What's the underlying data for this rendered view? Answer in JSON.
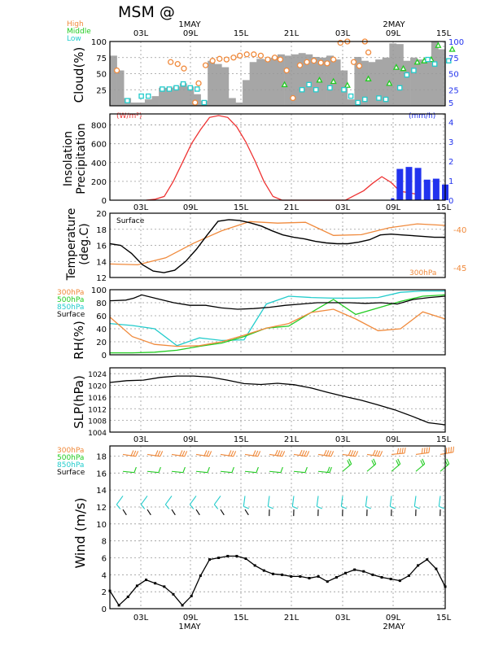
{
  "chart_data": {
    "type": "line",
    "title": "MSM @",
    "x_ticks": [
      "03L",
      "09L",
      "15L",
      "21L",
      "03L",
      "09L",
      "15L"
    ],
    "date_labels": [
      "1MAY",
      "2MAY"
    ],
    "colors": {
      "high": "#f08a3c",
      "middle": "#22cc22",
      "low": "#22cccc",
      "surface": "#000000",
      "insolation": "#ee3333",
      "precipitation": "#2233ee",
      "p300": "#f08a3c",
      "p500": "#22cc22",
      "p850": "#22cccc"
    },
    "cloud": {
      "ylabel": "Cloud(%)",
      "ylim": [
        0,
        100
      ],
      "yticks_left": [
        "25",
        "50",
        "75",
        "100"
      ],
      "yticks_right": [
        "5",
        "25",
        "50",
        "75",
        "100"
      ],
      "legend": [
        "High",
        "Middle",
        "Low"
      ],
      "total": [
        78,
        55,
        12,
        5,
        5,
        10,
        15,
        28,
        28,
        30,
        35,
        30,
        18,
        8,
        70,
        65,
        60,
        12,
        5,
        40,
        68,
        73,
        72,
        75,
        80,
        78,
        80,
        82,
        80,
        76,
        75,
        78,
        72,
        55,
        10,
        76,
        70,
        68,
        72,
        75,
        97,
        96,
        70,
        75,
        72,
        68,
        100,
        88
      ],
      "high": [
        null,
        55,
        null,
        null,
        null,
        null,
        null,
        null,
        null,
        null,
        null,
        null,
        null,
        null,
        68,
        65,
        60,
        12,
        null,
        37,
        65,
        73,
        null,
        76,
        78,
        80,
        82,
        null,
        76,
        75,
        78,
        72,
        55,
        null,
        73,
        null,
        68,
        65,
        null,
        72,
        null,
        null,
        null,
        null,
        null,
        null,
        null,
        null
      ],
      "middle": [
        null,
        null,
        null,
        null,
        null,
        null,
        null,
        null,
        null,
        null,
        null,
        null,
        null,
        null,
        null,
        null,
        null,
        null,
        null,
        null,
        null,
        null,
        null,
        null,
        null,
        null,
        null,
        null,
        null,
        null,
        null,
        null,
        null,
        null,
        null,
        null,
        null,
        null,
        null,
        null,
        null,
        null,
        null,
        null,
        null,
        null,
        null,
        null
      ],
      "middle_points": [
        [
          25,
          33
        ],
        [
          30,
          40
        ],
        [
          32,
          38
        ],
        [
          34,
          32
        ],
        [
          37,
          42
        ],
        [
          40,
          35
        ],
        [
          41,
          60
        ],
        [
          42,
          58
        ],
        [
          44,
          68
        ],
        [
          45,
          70
        ],
        [
          46,
          72
        ],
        [
          47,
          94
        ],
        [
          49,
          88
        ]
      ],
      "low_points": [
        [
          2.5,
          8
        ],
        [
          4.5,
          15
        ],
        [
          5.5,
          15
        ],
        [
          7.5,
          26
        ],
        [
          8.5,
          26
        ],
        [
          9.5,
          28
        ],
        [
          10.5,
          34
        ],
        [
          11.5,
          28
        ],
        [
          12.5,
          26
        ],
        [
          13.5,
          5
        ],
        [
          27.5,
          25
        ],
        [
          28.5,
          33
        ],
        [
          29.5,
          25
        ],
        [
          31.5,
          28
        ],
        [
          33.5,
          25
        ],
        [
          34.5,
          15
        ],
        [
          35.5,
          5
        ],
        [
          36.5,
          10
        ],
        [
          38.5,
          12
        ],
        [
          39.5,
          10
        ],
        [
          41.5,
          28
        ],
        [
          42.5,
          48
        ],
        [
          43.5,
          55
        ],
        [
          45.5,
          72
        ],
        [
          46.5,
          65
        ],
        [
          48.5,
          70
        ]
      ],
      "high_points": [
        [
          1,
          55
        ],
        [
          8.7,
          68
        ],
        [
          9.7,
          65
        ],
        [
          10.6,
          58
        ],
        [
          12.2,
          5
        ],
        [
          12.7,
          35
        ],
        [
          13.7,
          63
        ],
        [
          14.7,
          70
        ],
        [
          15.7,
          73
        ],
        [
          16.7,
          72
        ],
        [
          17.7,
          75
        ],
        [
          18.6,
          78
        ],
        [
          19.6,
          80
        ],
        [
          20.6,
          80
        ],
        [
          21.6,
          78
        ],
        [
          22.6,
          72
        ],
        [
          23.6,
          75
        ],
        [
          24.4,
          72
        ],
        [
          25.3,
          55
        ],
        [
          26.2,
          12
        ],
        [
          27.2,
          63
        ],
        [
          28.2,
          68
        ],
        [
          29.2,
          70
        ],
        [
          30.2,
          67
        ],
        [
          31.1,
          66
        ],
        [
          32,
          72
        ],
        [
          33,
          98
        ],
        [
          34,
          100
        ],
        [
          34.9,
          68
        ],
        [
          35.7,
          62
        ],
        [
          36.5,
          100
        ],
        [
          37,
          83
        ]
      ]
    },
    "insolation": {
      "ylabel": "Insolation Precipitation",
      "left_unit": "(W/m²)",
      "right_unit": "(mm/h)",
      "yticks_left": [
        "0",
        "200",
        "400",
        "600",
        "800"
      ],
      "yticks_right": [
        "0",
        "1",
        "2",
        "3",
        "4"
      ],
      "insolation_points": [
        [
          4,
          0
        ],
        [
          5,
          10
        ],
        [
          6,
          40
        ],
        [
          7,
          200
        ],
        [
          8,
          400
        ],
        [
          9,
          600
        ],
        [
          10,
          750
        ],
        [
          11,
          880
        ],
        [
          12,
          900
        ],
        [
          13,
          880
        ],
        [
          14,
          780
        ],
        [
          15,
          620
        ],
        [
          16,
          420
        ],
        [
          17,
          200
        ],
        [
          18,
          40
        ],
        [
          19,
          0
        ],
        [
          26,
          0
        ],
        [
          27,
          50
        ],
        [
          28,
          100
        ],
        [
          29,
          180
        ],
        [
          30,
          250
        ],
        [
          31,
          190
        ],
        [
          32,
          95
        ],
        [
          33,
          80
        ],
        [
          34,
          60
        ]
      ],
      "precip_bars": [
        [
          31.2,
          0.1
        ],
        [
          32,
          1.6
        ],
        [
          33,
          1.7
        ],
        [
          34,
          1.65
        ],
        [
          35,
          1.05
        ],
        [
          36,
          1.1
        ],
        [
          37,
          0.8
        ]
      ]
    },
    "temperature": {
      "ylabel": "Temperature (deg.C)",
      "left_ticks": [
        "12",
        "14",
        "16",
        "18",
        "20"
      ],
      "right_ticks": [
        "-40",
        "-45"
      ],
      "label_surface": "Surface",
      "label_upper": "300hPa",
      "surface_points": [
        [
          0,
          16.2
        ],
        [
          1,
          16
        ],
        [
          2,
          15
        ],
        [
          3,
          13.6
        ],
        [
          4,
          12.8
        ],
        [
          5,
          12.6
        ],
        [
          6,
          12.9
        ],
        [
          7,
          14
        ],
        [
          8,
          15.5
        ],
        [
          9,
          17.3
        ],
        [
          10,
          19
        ],
        [
          11,
          19.2
        ],
        [
          12,
          19.1
        ],
        [
          13,
          18.8
        ],
        [
          14,
          18.4
        ],
        [
          15,
          17.8
        ],
        [
          16,
          17.3
        ],
        [
          17,
          17
        ],
        [
          18,
          16.8
        ],
        [
          19,
          16.5
        ],
        [
          20,
          16.3
        ],
        [
          21,
          16.2
        ],
        [
          22,
          16.2
        ],
        [
          23,
          16.4
        ],
        [
          24,
          16.7
        ],
        [
          25,
          17.3
        ],
        [
          26,
          17.4
        ],
        [
          27,
          17.3
        ],
        [
          28,
          17.2
        ],
        [
          29,
          17.1
        ],
        [
          30,
          17
        ],
        [
          31,
          17
        ]
      ],
      "upper_points": [
        [
          0,
          -44.5
        ],
        [
          3,
          -44.6
        ],
        [
          6,
          -43.7
        ],
        [
          9,
          -41.8
        ],
        [
          12,
          -40.2
        ],
        [
          15,
          -39
        ],
        [
          18,
          -39.2
        ],
        [
          21,
          -39.1
        ],
        [
          24,
          -40.8
        ],
        [
          27,
          -40.7
        ],
        [
          30,
          -39.8
        ],
        [
          33,
          -39.3
        ],
        [
          36,
          -39.5
        ]
      ]
    },
    "rh": {
      "ylabel": "RH(%)",
      "ylim": [
        0,
        100
      ],
      "yticks": [
        "0",
        "20",
        "40",
        "60",
        "80",
        "100"
      ],
      "legend": [
        "300hPa",
        "500hPa",
        "850hPa",
        "Surface"
      ],
      "surface": [
        [
          0,
          83
        ],
        [
          2,
          84
        ],
        [
          3,
          87
        ],
        [
          4,
          92
        ],
        [
          6,
          86
        ],
        [
          8,
          80
        ],
        [
          10,
          76
        ],
        [
          12,
          76
        ],
        [
          14,
          72
        ],
        [
          16,
          70
        ],
        [
          18,
          71
        ],
        [
          20,
          73
        ],
        [
          22,
          76
        ],
        [
          24,
          78
        ],
        [
          26,
          80
        ],
        [
          28,
          80
        ],
        [
          30,
          80
        ],
        [
          32,
          79
        ],
        [
          34,
          80
        ],
        [
          36,
          78
        ],
        [
          38,
          85
        ],
        [
          40,
          88
        ],
        [
          42,
          90
        ]
      ],
      "p300": [
        [
          0,
          58
        ],
        [
          3,
          28
        ],
        [
          6,
          16
        ],
        [
          9,
          13
        ],
        [
          12,
          14
        ],
        [
          15,
          20
        ],
        [
          18,
          30
        ],
        [
          21,
          41
        ],
        [
          24,
          48
        ],
        [
          27,
          65
        ],
        [
          30,
          70
        ],
        [
          33,
          55
        ],
        [
          36,
          37
        ],
        [
          39,
          40
        ],
        [
          42,
          66
        ],
        [
          45,
          55
        ]
      ],
      "p500": [
        [
          0,
          3
        ],
        [
          3,
          3
        ],
        [
          6,
          4
        ],
        [
          9,
          7
        ],
        [
          12,
          13
        ],
        [
          15,
          18
        ],
        [
          18,
          28
        ],
        [
          21,
          41
        ],
        [
          24,
          44
        ],
        [
          27,
          65
        ],
        [
          30,
          85
        ],
        [
          33,
          62
        ],
        [
          36,
          72
        ],
        [
          39,
          82
        ],
        [
          42,
          90
        ],
        [
          45,
          92
        ]
      ],
      "p850": [
        [
          0,
          48
        ],
        [
          3,
          45
        ],
        [
          6,
          40
        ],
        [
          9,
          14
        ],
        [
          12,
          26
        ],
        [
          15,
          22
        ],
        [
          18,
          23
        ],
        [
          21,
          78
        ],
        [
          24,
          90
        ],
        [
          27,
          88
        ],
        [
          30,
          87
        ],
        [
          33,
          87
        ],
        [
          36,
          88
        ],
        [
          39,
          96
        ],
        [
          42,
          98
        ],
        [
          45,
          98
        ]
      ]
    },
    "slp": {
      "ylabel": "SLP(hPa)",
      "yticks": [
        "1004",
        "1008",
        "1012",
        "1016",
        "1020",
        "1024"
      ],
      "points": [
        [
          0,
          1021
        ],
        [
          2,
          1021.6
        ],
        [
          4,
          1021.8
        ],
        [
          6,
          1022.7
        ],
        [
          8,
          1023.2
        ],
        [
          10,
          1023.2
        ],
        [
          12,
          1022.8
        ],
        [
          14,
          1021.8
        ],
        [
          16,
          1020.6
        ],
        [
          18,
          1020.3
        ],
        [
          20,
          1020.7
        ],
        [
          22,
          1020.2
        ],
        [
          24,
          1019.1
        ],
        [
          26,
          1017.6
        ],
        [
          28,
          1016.2
        ],
        [
          30,
          1014.9
        ],
        [
          32,
          1013.3
        ],
        [
          34,
          1011.6
        ],
        [
          36,
          1009.5
        ],
        [
          38,
          1007.2
        ],
        [
          40,
          1006.5
        ]
      ]
    },
    "wind": {
      "ylabel": "Wind (m/s)",
      "yticks": [
        "0",
        "2",
        "4",
        "6",
        "8",
        "10",
        "12",
        "14",
        "16",
        "18"
      ],
      "legend": [
        "300hPa",
        "500hPa",
        "850hPa",
        "Surface"
      ],
      "surface_speed": [
        2.1,
        0.4,
        1.4,
        2.7,
        3.4,
        3.0,
        2.6,
        1.7,
        0.4,
        1.5,
        3.9,
        5.8,
        6.0,
        6.2,
        6.2,
        5.9,
        5.1,
        4.5,
        4.1,
        4.0,
        3.8,
        3.8,
        3.6,
        3.8,
        3.2,
        3.7,
        4.2,
        4.6,
        4.4,
        4.0,
        3.7,
        3.5,
        3.3,
        3.9,
        5.1,
        5.8,
        4.7,
        2.6
      ]
    }
  }
}
